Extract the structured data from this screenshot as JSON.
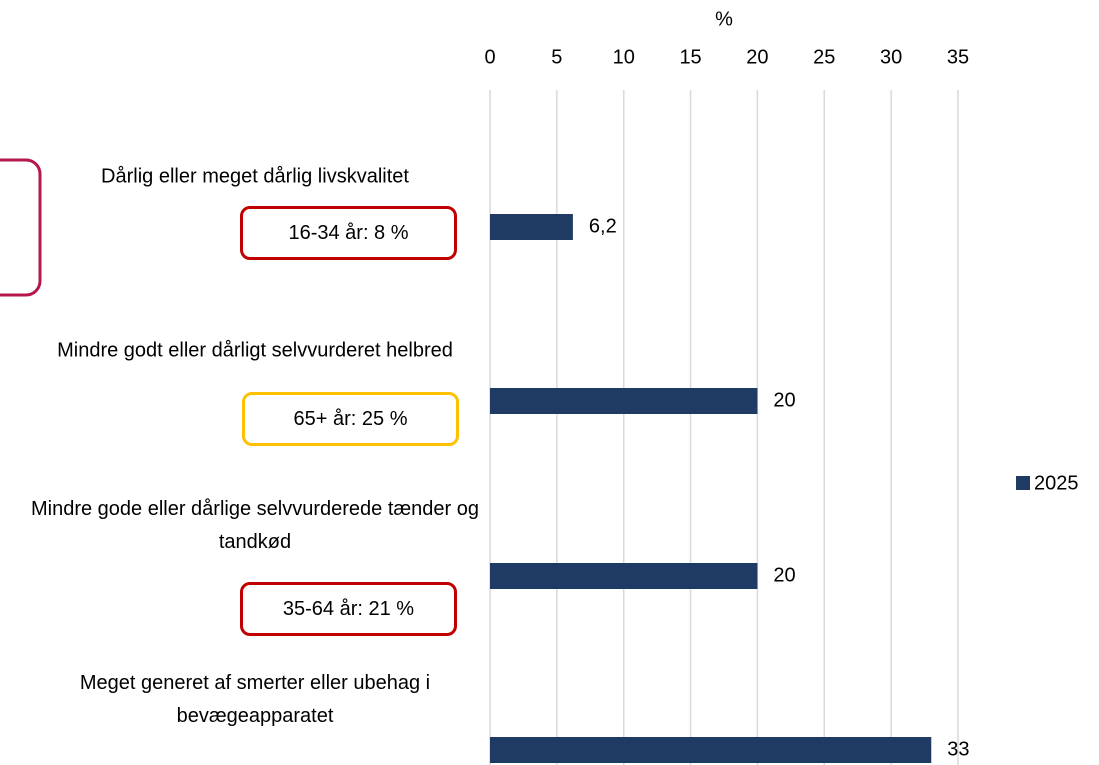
{
  "chart_data": {
    "type": "bar",
    "orientation": "horizontal",
    "xlabel": "%",
    "categories": [
      "Dårlig eller meget dårlig livskvalitet",
      "Mindre godt eller dårligt selvvurderet helbred",
      "Mindre gode eller dårlige selvvurderede tænder og tandkød",
      "Meget generet af smerter eller ubehag i bevægeapparatet"
    ],
    "series": [
      {
        "name": "2025",
        "color": "#1f3b63",
        "values": [
          6.2,
          20,
          20,
          33
        ],
        "value_labels": [
          "6,2",
          "20",
          "20",
          "33"
        ]
      }
    ],
    "xlim": [
      0,
      35
    ],
    "xticks": [
      0,
      5,
      10,
      15,
      20,
      25,
      30,
      35
    ],
    "grid": true,
    "legend": "right",
    "annotations": [
      {
        "text": "16-34 år: 8 %",
        "color": "#c00000"
      },
      {
        "text": "65+ år: 25 %",
        "color": "#ffc000"
      },
      {
        "text": "35-64 år: 21 %",
        "color": "#c00000"
      }
    ]
  }
}
